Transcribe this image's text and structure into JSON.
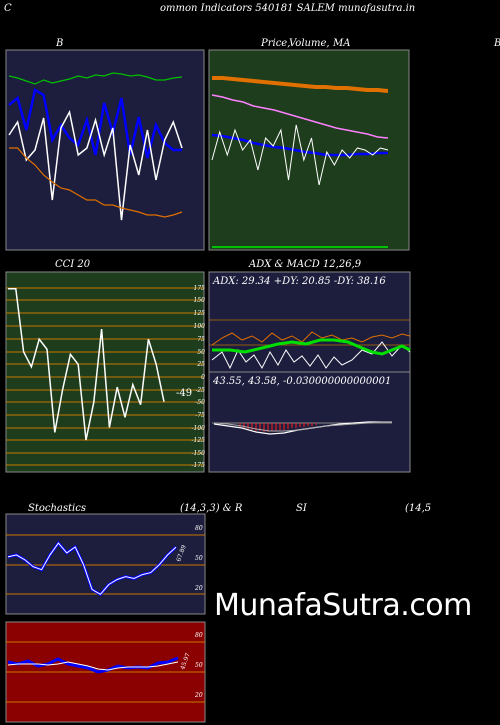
{
  "header": {
    "left_letter": "C",
    "title": "ommon  Indicators 540181 SALEM munafasutra.in"
  },
  "panels": {
    "bollinger": {
      "title": "B"
    },
    "price": {
      "title_a": "Price,",
      "title_b": "Volume,",
      "title_c": "MA",
      "right_letter": "B"
    },
    "cci": {
      "title": "CCI 20",
      "ticks": [
        "175",
        "150",
        "125",
        "100",
        "75",
        "50",
        "25",
        "0",
        "-25",
        "-50",
        "-75",
        "-100",
        "-125",
        "-150",
        "-175"
      ],
      "value": "-49"
    },
    "adx": {
      "title": "ADX  & MACD 12,26,9",
      "adx_text": "ADX: 29.34  +DY: 20.85 -DY: 38.16",
      "macd_text": "43.55,  43.58,  -0.030000000000001"
    },
    "stoch": {
      "title_left": "Stochastics",
      "title_mid": "(14,3,3) & R",
      "title_si": "SI",
      "title_right": "(14,5",
      "ticks": [
        "80",
        "50",
        "20"
      ],
      "value": "67.89"
    },
    "rsi": {
      "ticks": [
        "80",
        "50",
        "20"
      ],
      "value": "45.97"
    }
  },
  "watermark": "MunafaSutra.com",
  "colors": {
    "dark_panel": "#1d1d3d",
    "green_panel": "#1d3d1d",
    "red_panel": "#8b0000",
    "orange": "#e07000",
    "blue": "#0000ff",
    "green_line": "#00c000"
  },
  "chart_data": [
    {
      "type": "line",
      "title": "B",
      "series": [
        {
          "values": [
            76,
            78,
            81,
            84,
            80,
            83,
            81,
            79,
            76,
            78,
            75,
            76,
            73,
            74,
            76,
            75,
            77,
            80,
            80,
            78,
            77
          ]
        },
        {
          "values": [
            105,
            98,
            130,
            90,
            95,
            140,
            125,
            138,
            145,
            120,
            155,
            103,
            133,
            98,
            155,
            117,
            158,
            125,
            143,
            150,
            150
          ]
        },
        {
          "values": [
            135,
            122,
            160,
            150,
            118,
            200,
            128,
            112,
            155,
            148,
            120,
            155,
            128,
            220,
            145,
            175,
            130,
            180,
            140,
            122,
            148
          ]
        },
        {
          "values": [
            148,
            148,
            158,
            165,
            175,
            182,
            188,
            190,
            195,
            200,
            200,
            205,
            205,
            208,
            210,
            212,
            215,
            215,
            217,
            215,
            212
          ]
        }
      ]
    },
    {
      "type": "line",
      "title": "Price, Volume, MA",
      "series": [
        {
          "values": [
            78,
            78,
            79,
            80,
            81,
            82,
            83,
            84,
            85,
            86,
            87,
            87,
            88,
            88,
            89,
            90,
            90,
            91
          ]
        },
        {
          "values": [
            95,
            97,
            100,
            102,
            106,
            108,
            110,
            113,
            116,
            119,
            122,
            125,
            128,
            130,
            132,
            134,
            137,
            138
          ]
        },
        {
          "values": [
            135,
            136,
            138,
            140,
            143,
            145,
            147,
            148,
            150,
            152,
            153,
            155,
            155,
            155,
            154,
            154,
            153,
            153
          ]
        },
        {
          "values": [
            160,
            132,
            155,
            130,
            150,
            140,
            170,
            138,
            146,
            130,
            180,
            125,
            160,
            138,
            185,
            152,
            165,
            150,
            158,
            148,
            150,
            155,
            148,
            150
          ]
        }
      ]
    },
    {
      "type": "line",
      "title": "CCI 20",
      "series": [
        {
          "values": [
            175,
            175,
            50,
            20,
            75,
            55,
            -110,
            -25,
            45,
            25,
            -125,
            -50,
            95,
            -100,
            -20,
            -80,
            -15,
            -55,
            75,
            25,
            -49
          ]
        }
      ]
    },
    {
      "type": "line",
      "title": "Stochastics (14,3,3) & RSI (14,5)",
      "series": [
        {
          "values": [
            58,
            60,
            55,
            48,
            45,
            60,
            72,
            62,
            68,
            50,
            25,
            20,
            30,
            35,
            38,
            36,
            40,
            42,
            50,
            60,
            67.89
          ]
        },
        {
          "values": [
            45.97
          ]
        }
      ]
    }
  ]
}
